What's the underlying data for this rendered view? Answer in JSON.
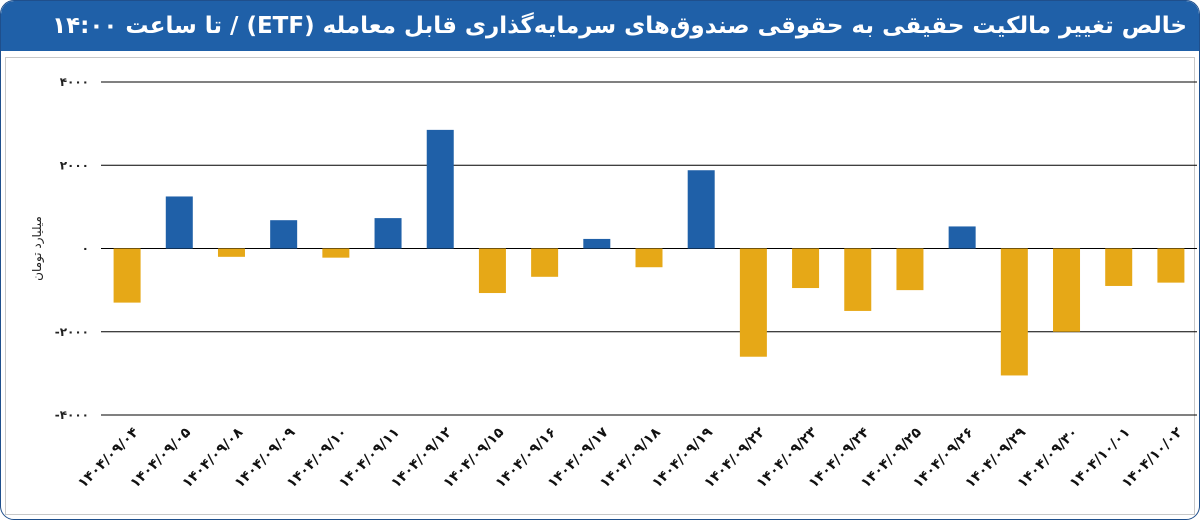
{
  "title": "خالص تغییر مالکیت حقیقی به حقوقی صندوق‌های سرمایه‌گذاری قابل معامله (ETF) / تا ساعت ۱۴:۰۰",
  "colors": {
    "positive": "#1f60a8",
    "negative": "#e6a817",
    "header": "#1f60a8",
    "grid": "#000000"
  },
  "chart_data": {
    "type": "bar",
    "title": "خالص تغییر مالکیت حقیقی به حقوقی صندوق‌های سرمایه‌گذاری قابل معامله (ETF) / تا ساعت ۱۴:۰۰",
    "xlabel": "",
    "ylabel": "میلیارد تومان",
    "ylim": [
      -4000,
      4000
    ],
    "yticks": [
      4000,
      2000,
      0,
      -2000,
      -4000
    ],
    "ytick_labels": [
      "۴۰۰۰",
      "۲۰۰۰",
      "۰",
      "-۲۰۰۰",
      "-۴۰۰۰"
    ],
    "grid": true,
    "categories": [
      "۱۴۰۴/۰۹/۰۴",
      "۱۴۰۴/۰۹/۰۵",
      "۱۴۰۴/۰۹/۰۸",
      "۱۴۰۴/۰۹/۰۹",
      "۱۴۰۴/۰۹/۱۰",
      "۱۴۰۴/۰۹/۱۱",
      "۱۴۰۴/۰۹/۱۲",
      "۱۴۰۴/۰۹/۱۵",
      "۱۴۰۴/۰۹/۱۶",
      "۱۴۰۴/۰۹/۱۷",
      "۱۴۰۴/۰۹/۱۸",
      "۱۴۰۴/۰۹/۱۹",
      "۱۴۰۴/۰۹/۲۲",
      "۱۴۰۴/۰۹/۲۳",
      "۱۴۰۴/۰۹/۲۴",
      "۱۴۰۴/۰۹/۲۵",
      "۱۴۰۴/۰۹/۲۶",
      "۱۴۰۴/۰۹/۲۹",
      "۱۴۰۴/۰۹/۳۰",
      "۱۴۰۴/۱۰/۰۱",
      "۱۴۰۴/۱۰/۰۲"
    ],
    "values": [
      -1300,
      1250,
      -200,
      680,
      -220,
      730,
      2850,
      -1070,
      -680,
      230,
      -450,
      1880,
      -2600,
      -950,
      -1500,
      -1000,
      530,
      -3050,
      -2000,
      -900,
      -820
    ]
  }
}
